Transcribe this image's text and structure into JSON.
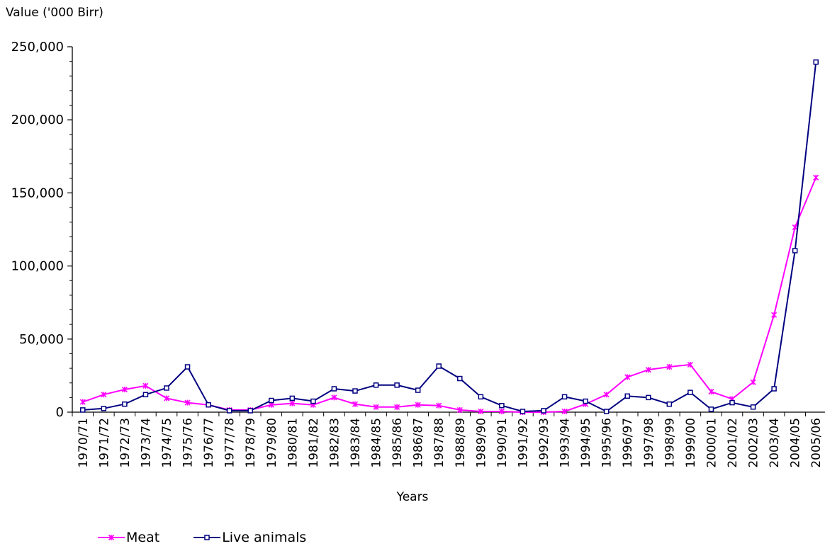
{
  "chart_data": {
    "type": "line",
    "ylabel": "Value ('000 Birr)",
    "xlabel": "Years",
    "ylim": [
      0,
      250000
    ],
    "yticks": [
      0,
      50000,
      100000,
      150000,
      200000,
      250000
    ],
    "ytick_labels": [
      "0",
      "50,000",
      "100,000",
      "150,000",
      "200,000",
      "250,000"
    ],
    "categories": [
      "1970/71",
      "1971/72",
      "1972/73",
      "1973/74",
      "1974/75",
      "1975/76",
      "1976/77",
      "1977/78",
      "1978/79",
      "1979/80",
      "1980/81",
      "1981/82",
      "1982/83",
      "1983/84",
      "1984/85",
      "1985/86",
      "1986/87",
      "1987/88",
      "1988/89",
      "1989/90",
      "1990/91",
      "1991/92",
      "1992/93",
      "1993/94",
      "1994/95",
      "1995/96",
      "1996/97",
      "1997/98",
      "1998/99",
      "1999/00",
      "2000/01",
      "2001/02",
      "2002/03",
      "2003/04",
      "2004/05",
      "2005/06"
    ],
    "grid": false,
    "legend": "bottom-left",
    "series": [
      {
        "name": "Meat",
        "color": "#ff00ff",
        "marker": "asterisk",
        "values": [
          7000,
          12000,
          15500,
          18000,
          9500,
          6500,
          5000,
          1500,
          1500,
          5000,
          6000,
          5000,
          10000,
          5500,
          3500,
          3500,
          5000,
          4500,
          1500,
          500,
          500,
          0,
          0,
          500,
          5500,
          12000,
          24000,
          29000,
          31000,
          32500,
          14000,
          9000,
          20500,
          66500,
          126500,
          160500
        ]
      },
      {
        "name": "Live animals",
        "color": "#000080",
        "marker": "square",
        "values": [
          1500,
          2500,
          5500,
          12000,
          16500,
          31000,
          5000,
          1000,
          1000,
          8000,
          9500,
          7500,
          16000,
          14500,
          18500,
          18500,
          15000,
          31500,
          23000,
          10500,
          4500,
          500,
          1000,
          10500,
          7500,
          500,
          11000,
          10000,
          5500,
          13500,
          2000,
          6500,
          3500,
          16000,
          110500,
          239500
        ]
      }
    ]
  }
}
